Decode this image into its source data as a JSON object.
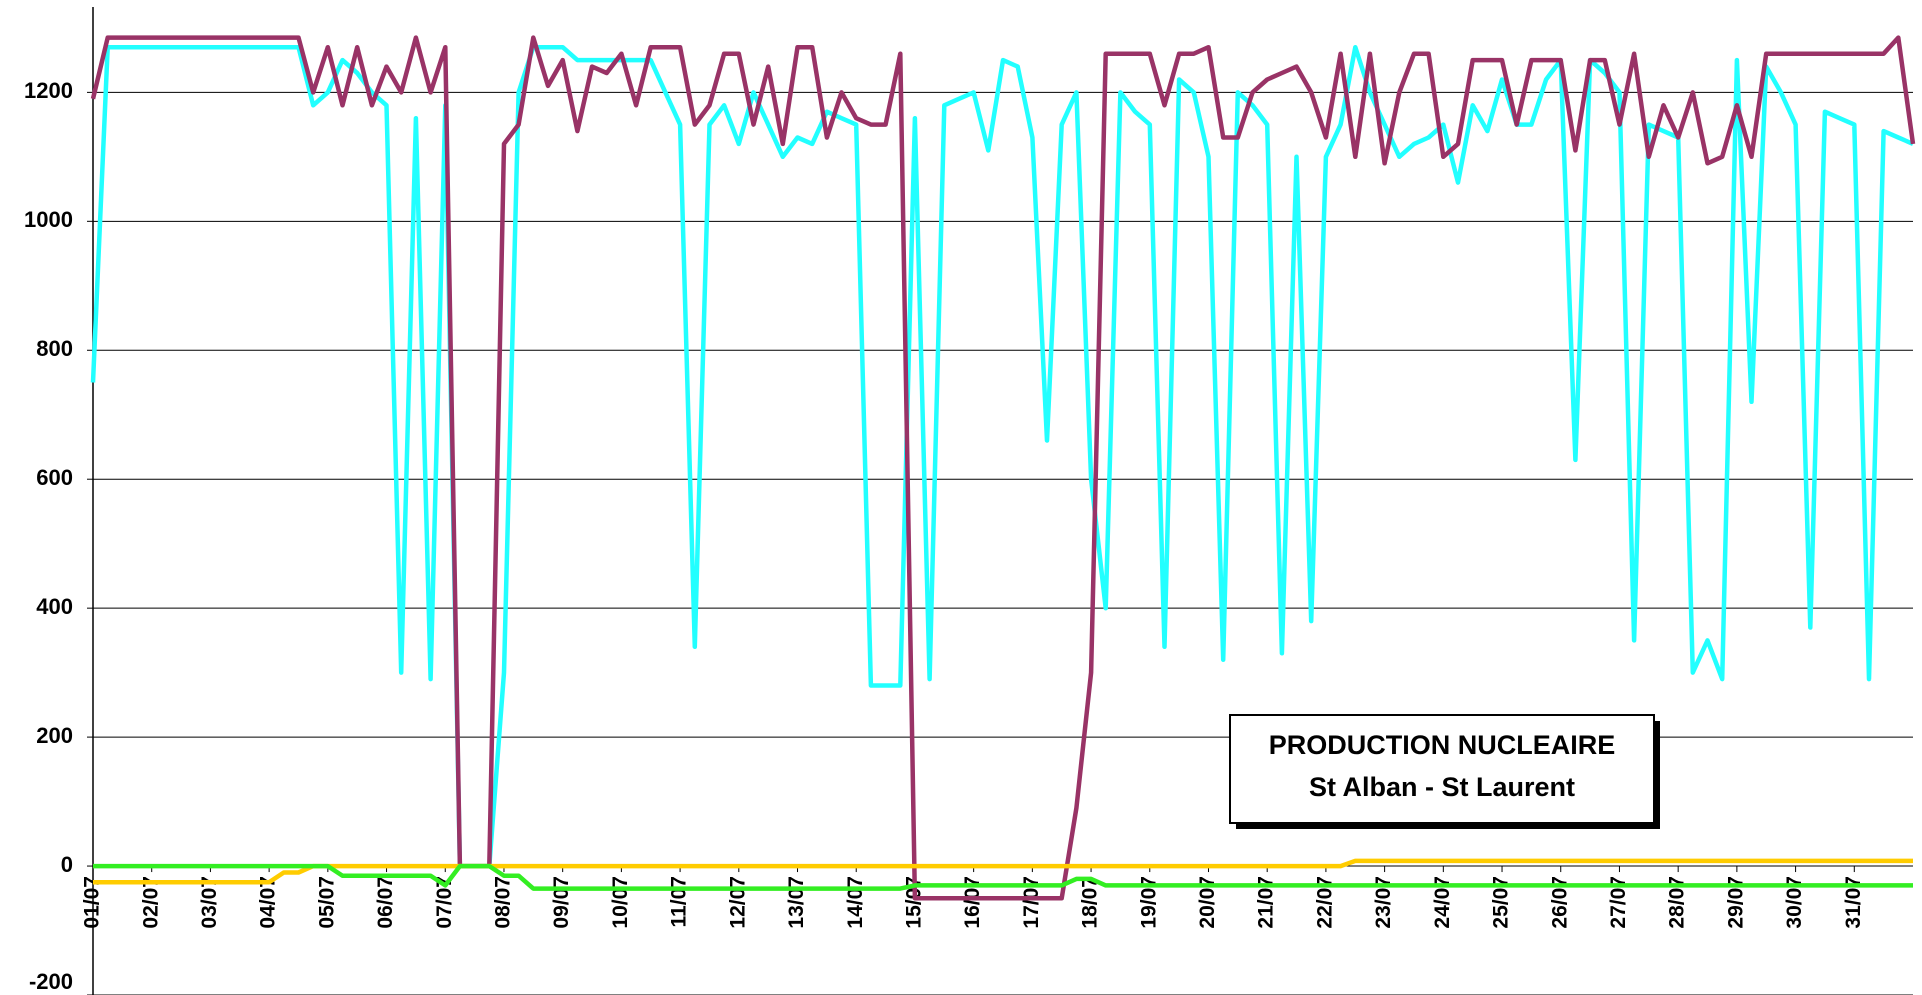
{
  "chart_data": {
    "type": "line",
    "annotations": [
      "PRODUCTION NUCLEAIRE",
      "St Alban - St Laurent"
    ],
    "x": [
      1,
      1.25,
      1.5,
      1.75,
      2,
      2.25,
      2.5,
      2.75,
      3,
      3.25,
      3.5,
      3.75,
      4,
      4.25,
      4.5,
      4.75,
      5,
      5.25,
      5.5,
      5.75,
      6,
      6.25,
      6.5,
      6.75,
      7,
      7.25,
      7.5,
      7.75,
      8,
      8.25,
      8.5,
      8.75,
      9,
      9.25,
      9.5,
      9.75,
      10,
      10.25,
      10.5,
      10.75,
      11,
      11.25,
      11.5,
      11.75,
      12,
      12.25,
      12.5,
      12.75,
      13,
      13.25,
      13.5,
      13.75,
      14,
      14.25,
      14.5,
      14.75,
      15,
      15.25,
      15.5,
      15.75,
      16,
      16.25,
      16.5,
      16.75,
      17,
      17.25,
      17.5,
      17.75,
      18,
      18.25,
      18.5,
      18.75,
      19,
      19.25,
      19.5,
      19.75,
      20,
      20.25,
      20.5,
      20.75,
      21,
      21.25,
      21.5,
      21.75,
      22,
      22.25,
      22.5,
      22.75,
      23,
      23.25,
      23.5,
      23.75,
      24,
      24.25,
      24.5,
      24.75,
      25,
      25.25,
      25.5,
      25.75,
      26,
      26.25,
      26.5,
      26.75,
      27,
      27.25,
      27.5,
      27.75,
      28,
      28.25,
      28.5,
      28.75,
      29,
      29.25,
      29.5,
      29.75,
      30,
      30.25,
      30.5,
      30.75,
      31,
      31.25,
      31.5,
      31.75,
      32
    ],
    "series": [
      {
        "color": "#22ffff",
        "values": [
          750,
          1270,
          1270,
          1270,
          1270,
          1270,
          1270,
          1270,
          1270,
          1270,
          1270,
          1270,
          1270,
          1270,
          1270,
          1180,
          1200,
          1250,
          1230,
          1200,
          1180,
          300,
          1160,
          290,
          1180,
          0,
          0,
          0,
          300,
          1200,
          1270,
          1270,
          1270,
          1250,
          1250,
          1250,
          1250,
          1250,
          1250,
          1200,
          1150,
          340,
          1150,
          1180,
          1120,
          1200,
          1150,
          1100,
          1130,
          1120,
          1170,
          1160,
          1150,
          280,
          280,
          280,
          1160,
          290,
          1180,
          1190,
          1200,
          1110,
          1250,
          1240,
          1130,
          660,
          1150,
          1200,
          600,
          400,
          1200,
          1170,
          1150,
          340,
          1220,
          1200,
          1100,
          320,
          1200,
          1180,
          1150,
          330,
          1100,
          380,
          1100,
          1150,
          1270,
          1200,
          1150,
          1100,
          1120,
          1130,
          1150,
          1060,
          1180,
          1140,
          1220,
          1150,
          1150,
          1220,
          1250,
          630,
          1250,
          1230,
          1200,
          350,
          1150,
          1140,
          1130,
          300,
          350,
          290,
          1250,
          720,
          1240,
          1200,
          1150,
          370,
          1170,
          1160,
          1150,
          290,
          1140,
          1130,
          1120
        ]
      },
      {
        "color": "#993366",
        "values": [
          1190,
          1285,
          1285,
          1285,
          1285,
          1285,
          1285,
          1285,
          1285,
          1285,
          1285,
          1285,
          1285,
          1285,
          1285,
          1200,
          1270,
          1180,
          1270,
          1180,
          1240,
          1200,
          1285,
          1200,
          1270,
          0,
          0,
          0,
          1120,
          1150,
          1285,
          1210,
          1250,
          1140,
          1240,
          1230,
          1260,
          1180,
          1270,
          1270,
          1270,
          1150,
          1180,
          1260,
          1260,
          1150,
          1240,
          1120,
          1270,
          1270,
          1130,
          1200,
          1160,
          1150,
          1150,
          1260,
          -50,
          -50,
          -50,
          -50,
          -50,
          -50,
          -50,
          -50,
          -50,
          -50,
          -50,
          90,
          300,
          1260,
          1260,
          1260,
          1260,
          1180,
          1260,
          1260,
          1270,
          1130,
          1130,
          1200,
          1220,
          1230,
          1240,
          1200,
          1130,
          1260,
          1100,
          1260,
          1090,
          1200,
          1260,
          1260,
          1100,
          1120,
          1250,
          1250,
          1250,
          1150,
          1250,
          1250,
          1250,
          1110,
          1250,
          1250,
          1150,
          1260,
          1100,
          1180,
          1130,
          1200,
          1090,
          1100,
          1180,
          1100,
          1260,
          1260,
          1260,
          1260,
          1260,
          1260,
          1260,
          1260,
          1260,
          1285,
          1120
        ]
      },
      {
        "color": "#ffcc00",
        "values": [
          -25,
          -25,
          -25,
          -25,
          -25,
          -25,
          -25,
          -25,
          -25,
          -25,
          -25,
          -25,
          -25,
          -10,
          -10,
          0,
          0,
          0,
          0,
          0,
          0,
          0,
          0,
          0,
          0,
          0,
          0,
          0,
          0,
          0,
          0,
          0,
          0,
          0,
          0,
          0,
          0,
          0,
          0,
          0,
          0,
          0,
          0,
          0,
          0,
          0,
          0,
          0,
          0,
          0,
          0,
          0,
          0,
          0,
          0,
          0,
          0,
          0,
          0,
          0,
          0,
          0,
          0,
          0,
          0,
          0,
          0,
          0,
          0,
          0,
          0,
          0,
          0,
          0,
          0,
          0,
          0,
          0,
          0,
          0,
          0,
          0,
          0,
          0,
          0,
          0,
          8,
          8,
          8,
          8,
          8,
          8,
          8,
          8,
          8,
          8,
          8,
          8,
          8,
          8,
          8,
          8,
          8,
          8,
          8,
          8,
          8,
          8,
          8,
          8,
          8,
          8,
          8,
          8,
          8,
          8,
          8,
          8,
          8,
          8,
          8,
          8,
          8,
          8,
          8
        ]
      },
      {
        "color": "#33ee22",
        "values": [
          0,
          0,
          0,
          0,
          0,
          0,
          0,
          0,
          0,
          0,
          0,
          0,
          0,
          0,
          0,
          0,
          0,
          -15,
          -15,
          -15,
          -15,
          -15,
          -15,
          -15,
          -30,
          0,
          0,
          0,
          -15,
          -15,
          -35,
          -35,
          -35,
          -35,
          -35,
          -35,
          -35,
          -35,
          -35,
          -35,
          -35,
          -35,
          -35,
          -35,
          -35,
          -35,
          -35,
          -35,
          -35,
          -35,
          -35,
          -35,
          -35,
          -35,
          -35,
          -35,
          -30,
          -30,
          -30,
          -30,
          -30,
          -30,
          -30,
          -30,
          -30,
          -30,
          -30,
          -20,
          -20,
          -30,
          -30,
          -30,
          -30,
          -30,
          -30,
          -30,
          -30,
          -30,
          -30,
          -30,
          -30,
          -30,
          -30,
          -30,
          -30,
          -30,
          -30,
          -30,
          -30,
          -30,
          -30,
          -30,
          -30,
          -30,
          -30,
          -30,
          -30,
          -30,
          -30,
          -30,
          -30,
          -30,
          -30,
          -30,
          -30,
          -30,
          -30,
          -30,
          -30,
          -30,
          -30,
          -30,
          -30,
          -30,
          -30,
          -30,
          -30,
          -30,
          -30,
          -30,
          -30,
          -30,
          -30,
          -30,
          -30
        ]
      }
    ],
    "xlim": [
      1,
      32
    ],
    "xticks": [
      {
        "value": 1,
        "label": "01/07"
      },
      {
        "value": 2,
        "label": "02/07"
      },
      {
        "value": 3,
        "label": "03/07"
      },
      {
        "value": 4,
        "label": "04/07"
      },
      {
        "value": 5,
        "label": "05/07"
      },
      {
        "value": 6,
        "label": "06/07"
      },
      {
        "value": 7,
        "label": "07/07"
      },
      {
        "value": 8,
        "label": "08/07"
      },
      {
        "value": 9,
        "label": "09/07"
      },
      {
        "value": 10,
        "label": "10/07"
      },
      {
        "value": 11,
        "label": "11/07"
      },
      {
        "value": 12,
        "label": "12/07"
      },
      {
        "value": 13,
        "label": "13/07"
      },
      {
        "value": 14,
        "label": "14/07"
      },
      {
        "value": 15,
        "label": "15/07"
      },
      {
        "value": 16,
        "label": "16/07"
      },
      {
        "value": 17,
        "label": "17/07"
      },
      {
        "value": 18,
        "label": "18/07"
      },
      {
        "value": 19,
        "label": "19/07"
      },
      {
        "value": 20,
        "label": "20/07"
      },
      {
        "value": 21,
        "label": "21/07"
      },
      {
        "value": 22,
        "label": "22/07"
      },
      {
        "value": 23,
        "label": "23/07"
      },
      {
        "value": 24,
        "label": "24/07"
      },
      {
        "value": 25,
        "label": "25/07"
      },
      {
        "value": 26,
        "label": "26/07"
      },
      {
        "value": 27,
        "label": "27/07"
      },
      {
        "value": 28,
        "label": "28/07"
      },
      {
        "value": 29,
        "label": "29/07"
      },
      {
        "value": 30,
        "label": "30/07"
      },
      {
        "value": 31,
        "label": "31/07"
      }
    ],
    "ylim": [
      -200,
      1320
    ],
    "yticks": [
      -200,
      0,
      200,
      400,
      600,
      800,
      1000,
      1200
    ],
    "grid": true
  }
}
